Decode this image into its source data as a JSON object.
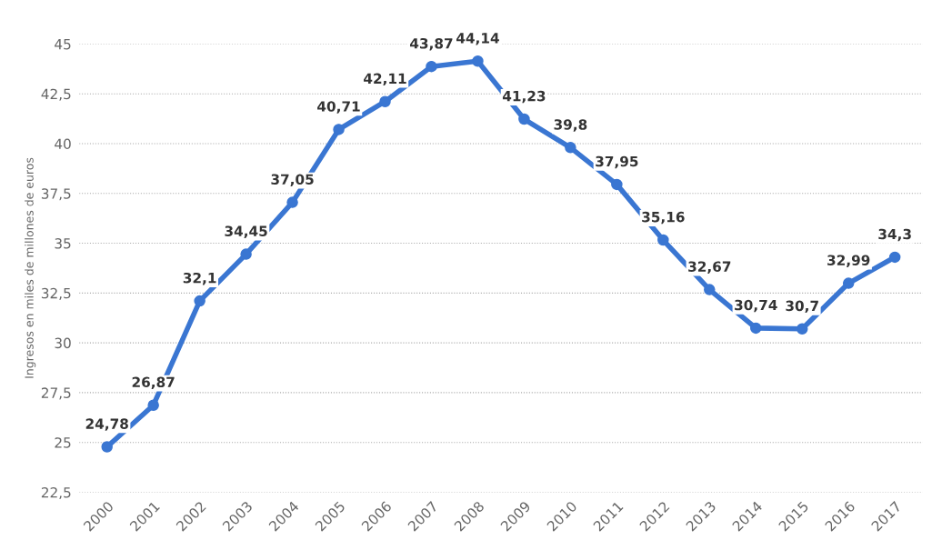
{
  "chart_data": {
    "type": "line",
    "ylabel": "Ingresos en miles de millones de euros",
    "categories": [
      "2000",
      "2001",
      "2002",
      "2003",
      "2004",
      "2005",
      "2006",
      "2007",
      "2008",
      "2009",
      "2010",
      "2011",
      "2012",
      "2013",
      "2014",
      "2015",
      "2016",
      "2017"
    ],
    "series": [
      {
        "color": "#3a76d2",
        "values": [
          24.78,
          26.87,
          32.1,
          34.45,
          37.05,
          40.71,
          42.11,
          43.87,
          44.14,
          41.23,
          39.8,
          37.95,
          35.16,
          32.67,
          30.74,
          30.7,
          32.99,
          34.3
        ],
        "value_labels": [
          "24,78",
          "26,87",
          "32,1",
          "34,45",
          "37,05",
          "40,71",
          "42,11",
          "43,87",
          "44,14",
          "41,23",
          "39,8",
          "37,95",
          "35,16",
          "32,67",
          "30,74",
          "30,7",
          "32,99",
          "34,3"
        ]
      }
    ],
    "ylim": [
      22.5,
      45
    ],
    "yticks": [
      {
        "value": 22.5,
        "label": "22,5"
      },
      25,
      {
        "value": 27.5,
        "label": "27,5"
      },
      30,
      {
        "value": 32.5,
        "label": "32,5"
      },
      35,
      {
        "value": 37.5,
        "label": "37,5"
      },
      40,
      {
        "value": 42.5,
        "label": "42,5"
      },
      45
    ],
    "grid": "y",
    "legend": false,
    "marker": "circle",
    "line_style": "solid"
  }
}
